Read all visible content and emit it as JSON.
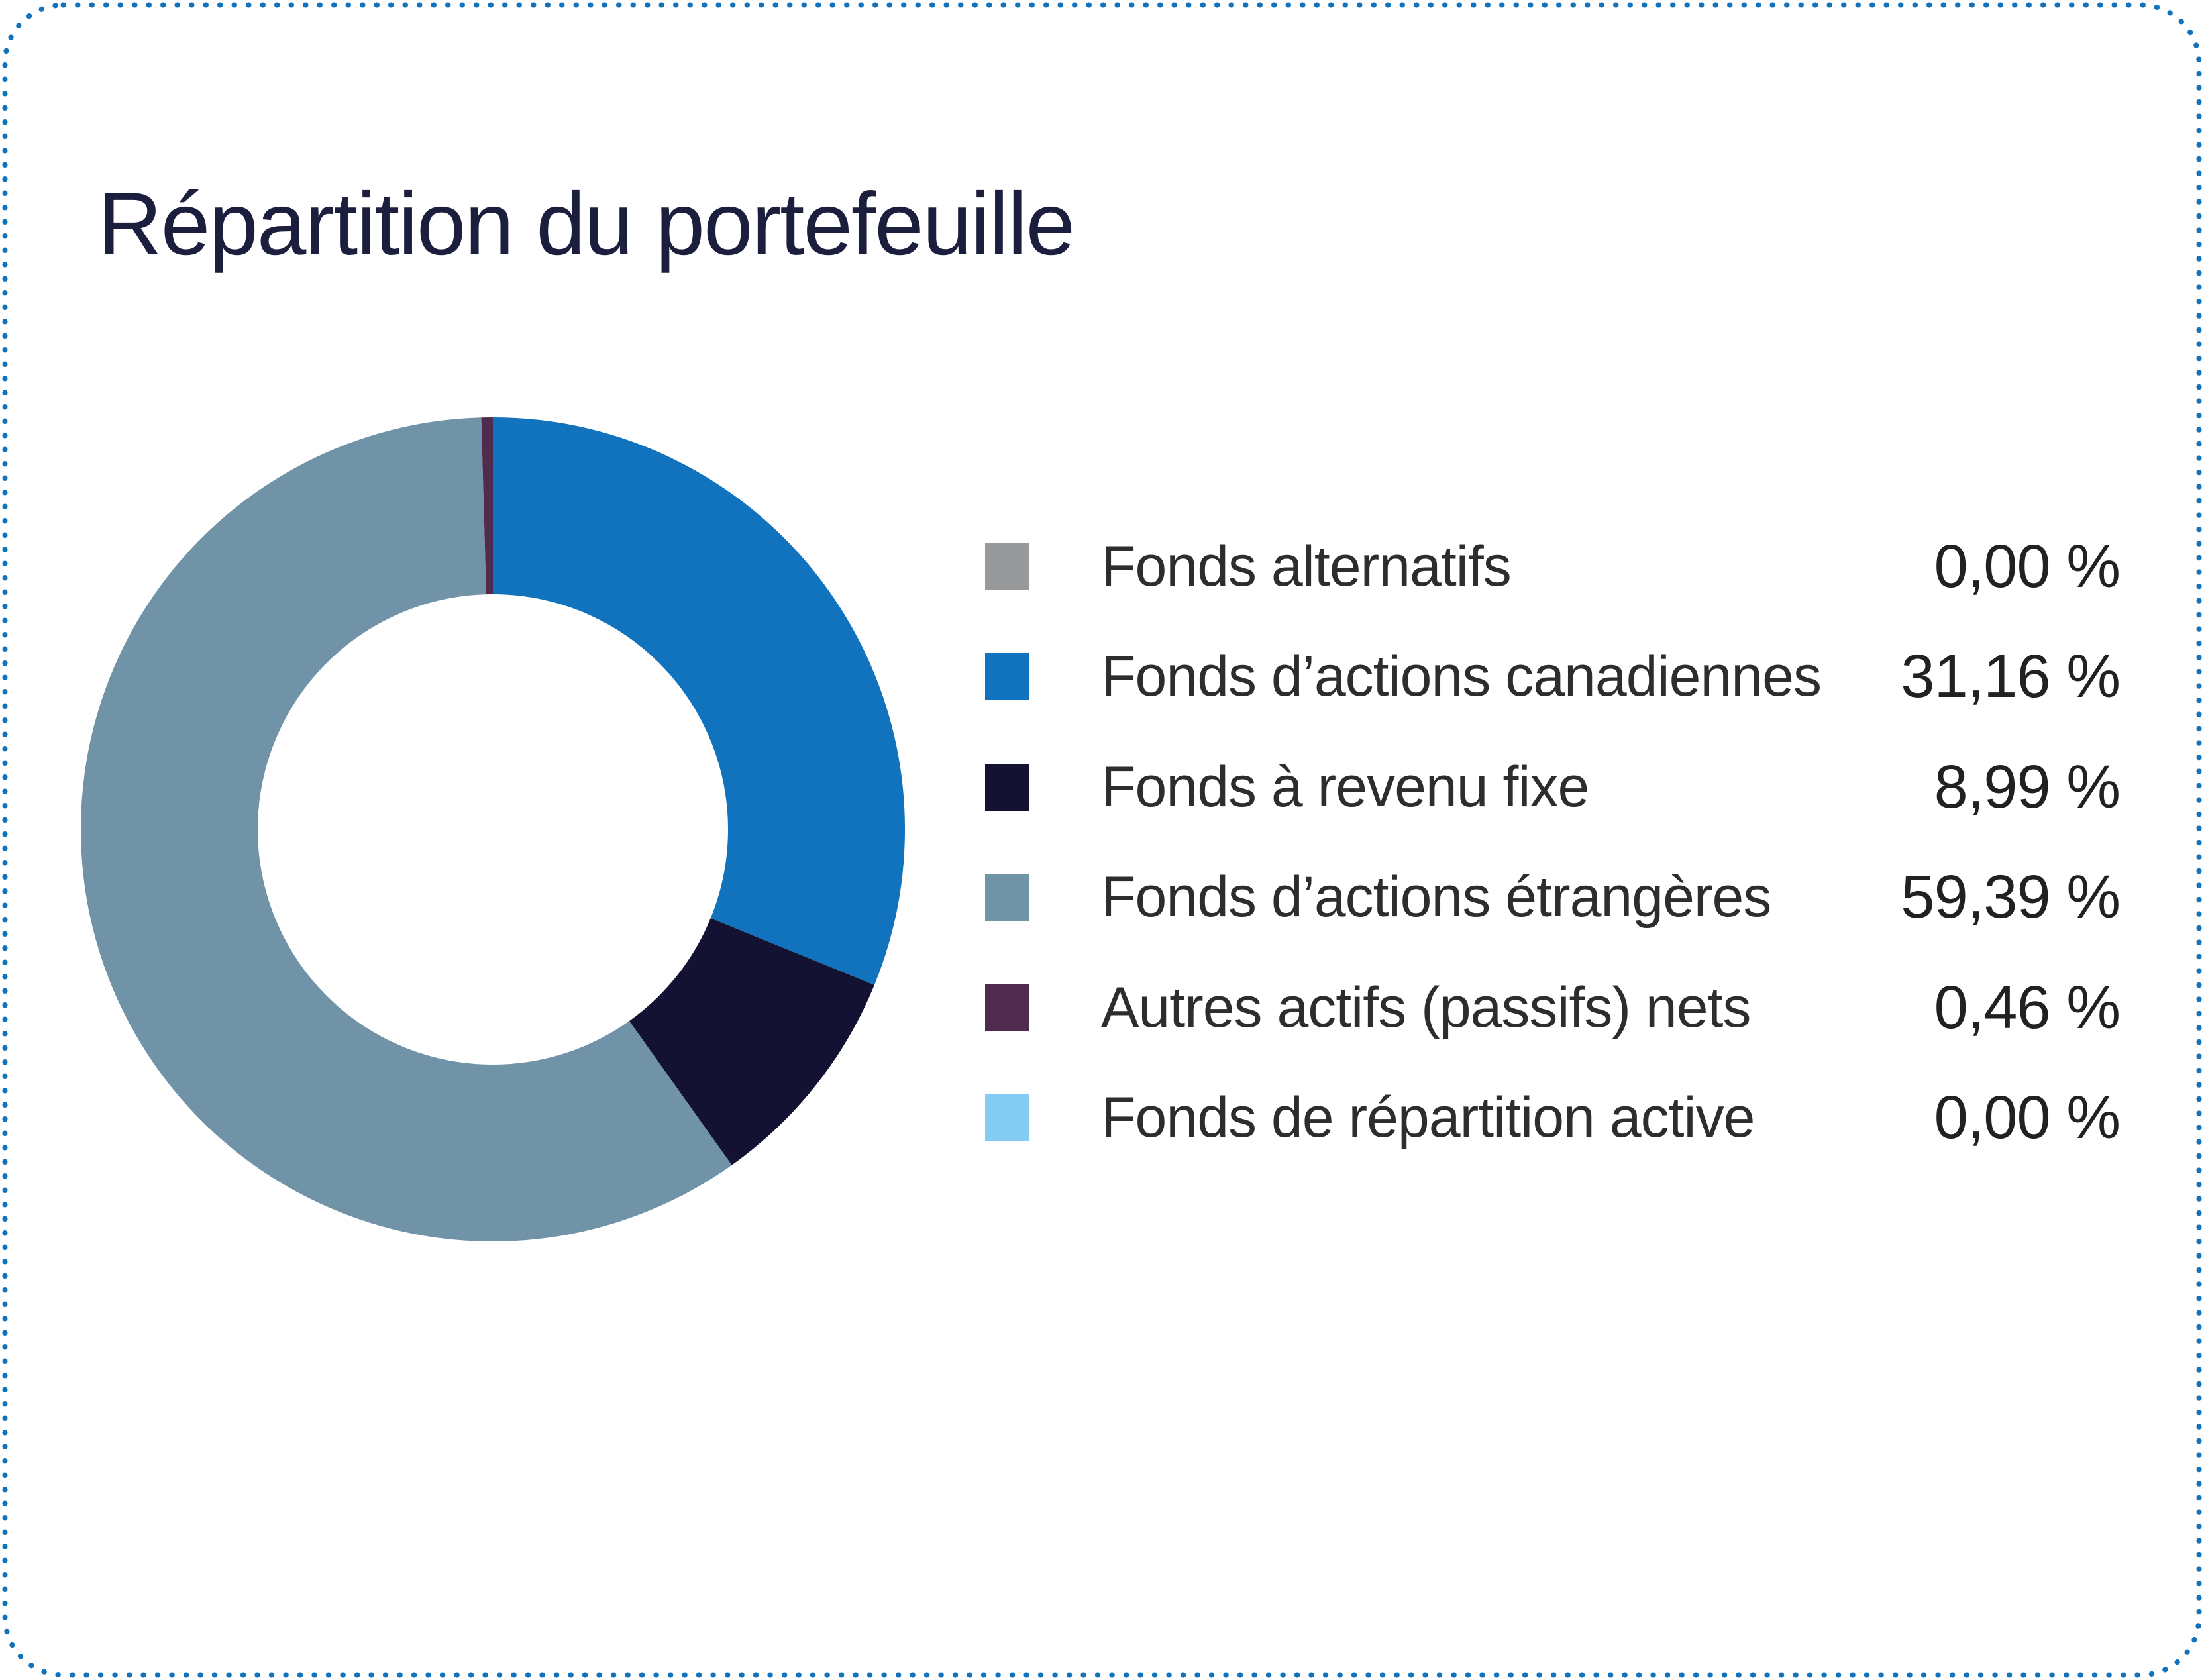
{
  "card": {
    "border_color": "#1272bc",
    "background_color": "#ffffff",
    "title_color": "#1c1e3e"
  },
  "chart_data": {
    "type": "pie",
    "title": "Répartition du portefeuille",
    "donut": true,
    "start_angle_deg": 0,
    "direction": "clockwise",
    "legend_position": "right",
    "inner_radius_ratio": 0.57,
    "items": [
      {
        "label": "Fonds alternatifs",
        "value": 0.0,
        "display_value": "0,00 %",
        "color": "#98999b"
      },
      {
        "label": "Fonds d’actions canadiennes",
        "value": 31.16,
        "display_value": "31,16 %",
        "color": "#1172bd"
      },
      {
        "label": "Fonds à revenu fixe",
        "value": 8.99,
        "display_value": "8,99 %",
        "color": "#131232"
      },
      {
        "label": "Fonds d’actions étrangères",
        "value": 59.39,
        "display_value": "59,39 %",
        "color": "#7093a8"
      },
      {
        "label": "Autres actifs (passifs) nets",
        "value": 0.46,
        "display_value": "0,46 %",
        "color": "#4f2b4d"
      },
      {
        "label": "Fonds de répartition active",
        "value": 0.0,
        "display_value": "0,00 %",
        "color": "#84ccf3"
      }
    ]
  }
}
